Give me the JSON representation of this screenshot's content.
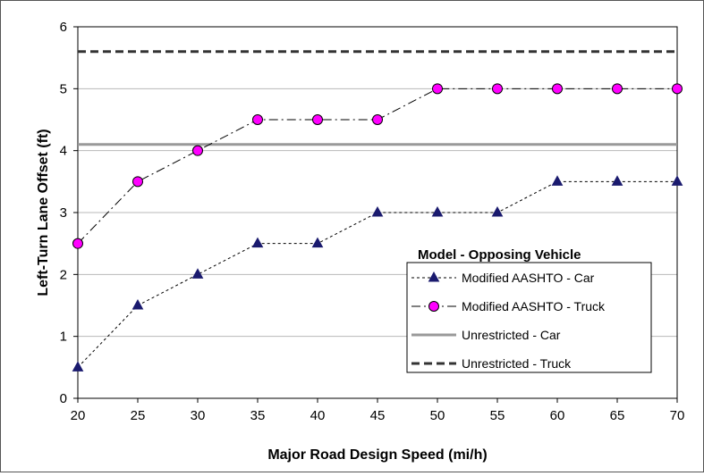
{
  "chart_data": {
    "type": "line",
    "title": "",
    "xlabel": "Major Road Design Speed (mi/h)",
    "ylabel": "Left-Turn Lane Offset (ft)",
    "x": [
      20,
      25,
      30,
      35,
      40,
      45,
      50,
      55,
      60,
      65,
      70
    ],
    "xlim": [
      20,
      70
    ],
    "ylim": [
      0,
      6
    ],
    "x_ticks": [
      20,
      25,
      30,
      35,
      40,
      45,
      50,
      55,
      60,
      65,
      70
    ],
    "y_ticks": [
      0,
      1,
      2,
      3,
      4,
      5,
      6
    ],
    "grid": "horizontal",
    "legend_title": "Model - Opposing Vehicle",
    "legend_position": "lower-right",
    "series": [
      {
        "name": "Modified AASHTO - Car",
        "kind": "points",
        "marker": "triangle",
        "line_style": "dotted",
        "color": "#1a1a6e",
        "values": [
          0.5,
          1.5,
          2.0,
          2.5,
          2.5,
          3.0,
          3.0,
          3.0,
          3.5,
          3.5,
          3.5
        ]
      },
      {
        "name": "Modified AASHTO - Truck",
        "kind": "points",
        "marker": "circle",
        "line_style": "dash-dot",
        "color": "#ff00ff",
        "values": [
          2.5,
          3.5,
          4.0,
          4.5,
          4.5,
          4.5,
          5.0,
          5.0,
          5.0,
          5.0,
          5.0
        ]
      },
      {
        "name": "Unrestricted - Car",
        "kind": "constant",
        "line_style": "solid",
        "color": "#999999",
        "value": 4.1
      },
      {
        "name": "Unrestricted - Truck",
        "kind": "constant",
        "line_style": "dashed",
        "color": "#333333",
        "value": 5.6
      }
    ]
  }
}
